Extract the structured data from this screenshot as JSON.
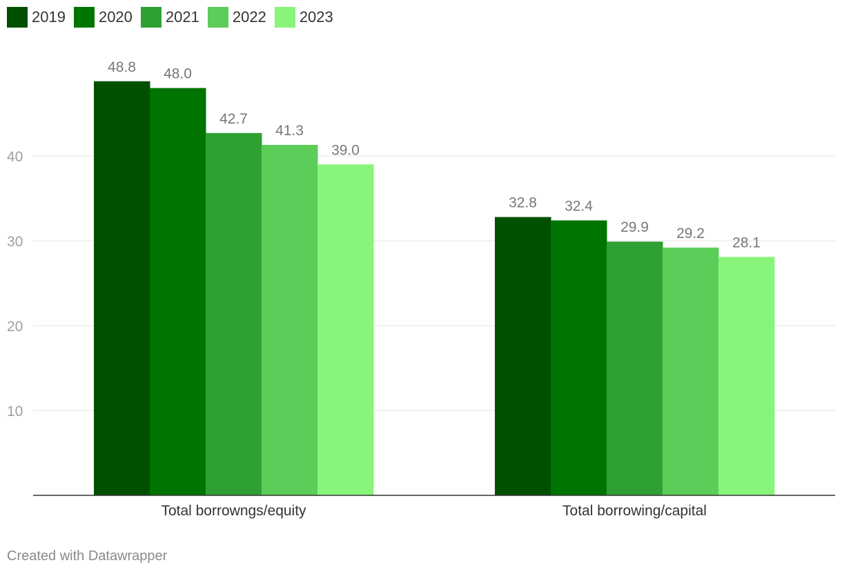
{
  "chart_data": {
    "type": "bar",
    "categories": [
      "Total borrowngs/equity",
      "Total borrowing/capital"
    ],
    "series": [
      {
        "name": "2019",
        "color": "#005000",
        "values": [
          48.8,
          32.8
        ]
      },
      {
        "name": "2020",
        "color": "#007400",
        "values": [
          48.0,
          32.4
        ]
      },
      {
        "name": "2021",
        "color": "#2ea132",
        "values": [
          42.7,
          29.9
        ]
      },
      {
        "name": "2022",
        "color": "#5ccd58",
        "values": [
          41.3,
          29.2
        ]
      },
      {
        "name": "2023",
        "color": "#88f57a",
        "values": [
          39.0,
          28.1
        ]
      }
    ],
    "y_ticks": [
      "10",
      "20",
      "30",
      "40"
    ],
    "ylim": [
      0,
      50
    ],
    "grid": true,
    "legend_position": "top-left",
    "title": "",
    "xlabel": "",
    "ylabel": ""
  },
  "footer": {
    "credit": "Created with Datawrapper"
  }
}
